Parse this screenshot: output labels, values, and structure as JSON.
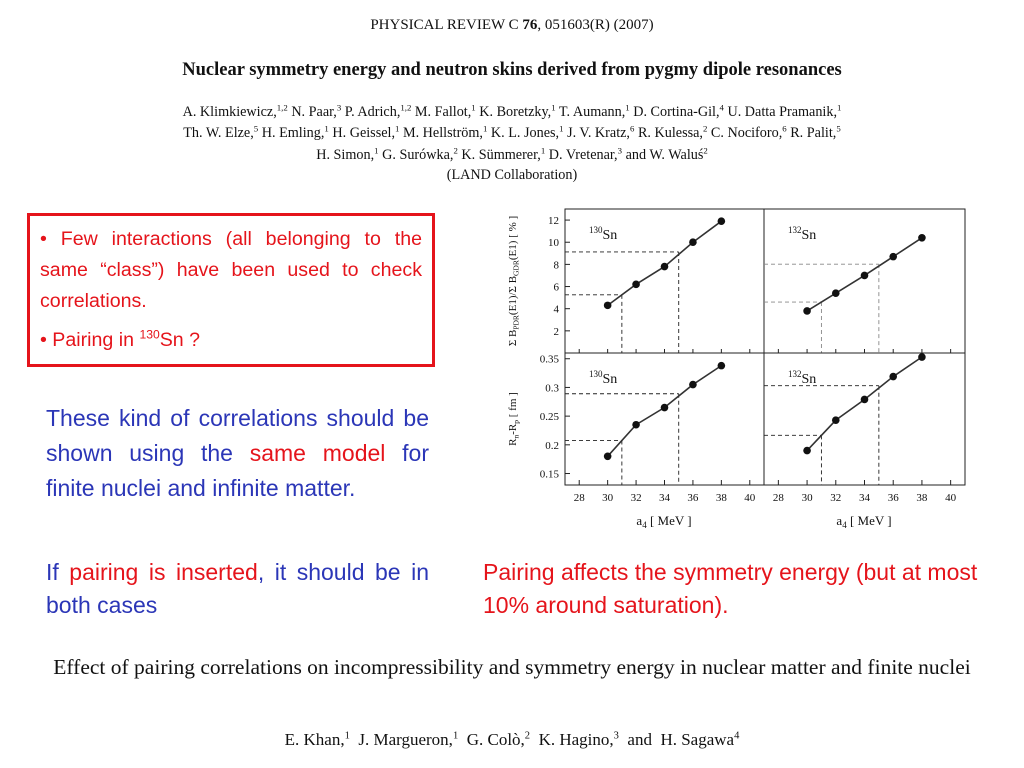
{
  "paper1": {
    "journal_prefix": "PHYSICAL REVIEW C ",
    "journal_volume": "76",
    "journal_suffix": ", 051603(R) (2007)",
    "title": "Nuclear symmetry energy and neutron skins derived from pygmy dipole resonances",
    "collaboration": "(LAND Collaboration)"
  },
  "callout": {
    "bullet1": "• Few interactions (all belonging to the same “class”) have been used to check correlations.",
    "bullet2_pre": "• Pairing in ",
    "bullet2_sup": "130",
    "bullet2_post": "Sn ?"
  },
  "notes": {
    "p1_a": "These kind of correlations should be shown using the",
    "p1_red": "same model",
    "p1_b": "for finite nuclei and infinite matter.",
    "p2_a": "If",
    "p2_red": "pairing is inserted",
    "p2_b": ", it should be in both cases",
    "right": "Pairing affects the symmetry energy (but at most 10% around saturation)."
  },
  "paper2": {
    "title": "Effect of pairing correlations on incompressibility and symmetry energy in nuclear matter and finite nuclei"
  },
  "chart_data": {
    "type": "scatter",
    "panels": [
      {
        "label_sup": "130",
        "label_el": "Sn",
        "row": "top",
        "x": [
          30,
          32,
          34,
          36,
          38
        ],
        "y": [
          4.3,
          6.2,
          7.8,
          10.0,
          11.9
        ],
        "ylim": [
          0,
          13
        ],
        "yticks": [
          "2",
          "4",
          "6",
          "8",
          "10",
          "12"
        ]
      },
      {
        "label_sup": "132",
        "label_el": "Sn",
        "row": "top",
        "x": [
          30,
          32,
          34,
          36,
          38
        ],
        "y": [
          3.8,
          5.4,
          7.0,
          8.7,
          10.4
        ],
        "ylim": [
          0,
          13
        ],
        "yticks": []
      },
      {
        "label_sup": "130",
        "label_el": "Sn",
        "row": "bottom",
        "x": [
          30,
          32,
          34,
          36,
          38
        ],
        "y": [
          0.18,
          0.235,
          0.265,
          0.305,
          0.338
        ],
        "ylim": [
          0.13,
          0.36
        ],
        "yticks": [
          "0.15",
          "0.2",
          "0.25",
          "0.3",
          "0.35"
        ]
      },
      {
        "label_sup": "132",
        "label_el": "Sn",
        "row": "bottom",
        "x": [
          30,
          32,
          34,
          36,
          38
        ],
        "y": [
          0.19,
          0.243,
          0.279,
          0.319,
          0.353
        ],
        "ylim": [
          0.13,
          0.36
        ],
        "yticks": []
      }
    ],
    "xticks": [
      "28",
      "30",
      "32",
      "34",
      "36",
      "38",
      "40"
    ],
    "xlim": [
      27,
      41
    ],
    "xlabel_main": "a",
    "xlabel_sub": "4",
    "xlabel_unit": " [ MeV ]",
    "ylabel_top": "Σ B",
    "ylabel_top_sub1": "PDR",
    "ylabel_top_mid": "(E1)/Σ B",
    "ylabel_top_sub2": "GDR",
    "ylabel_top_tail": "(E1) [ % ]",
    "ylabel_bottom_a": "R",
    "ylabel_bottom_sub1": "n",
    "ylabel_bottom_b": "-R",
    "ylabel_bottom_sub2": "p",
    "ylabel_bottom_c": " [ fm ]"
  }
}
